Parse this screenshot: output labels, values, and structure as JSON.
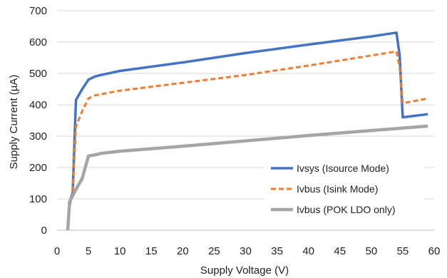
{
  "chart_data": {
    "type": "line",
    "title": "",
    "xlabel": "Supply Voltage (V)",
    "ylabel": "Supply Current (µA)",
    "xlim": [
      0,
      60
    ],
    "ylim": [
      0,
      700
    ],
    "xticks": [
      0,
      5,
      10,
      15,
      20,
      25,
      30,
      35,
      40,
      45,
      50,
      55,
      60
    ],
    "yticks": [
      0,
      100,
      200,
      300,
      400,
      500,
      600,
      700
    ],
    "grid": "horizontal",
    "legend_position": "bottom-right",
    "series": [
      {
        "name": "Ivsys (Isource Mode)",
        "color": "#4472C4",
        "style": "solid",
        "points": [
          [
            1.7,
            0
          ],
          [
            2,
            90
          ],
          [
            2.5,
            120
          ],
          [
            3,
            415
          ],
          [
            4,
            450
          ],
          [
            5,
            480
          ],
          [
            6,
            490
          ],
          [
            7,
            495
          ],
          [
            10,
            508
          ],
          [
            20,
            535
          ],
          [
            30,
            565
          ],
          [
            40,
            592
          ],
          [
            50,
            618
          ],
          [
            54,
            630
          ],
          [
            54.5,
            560
          ],
          [
            55,
            360
          ],
          [
            57,
            365
          ],
          [
            59,
            370
          ]
        ]
      },
      {
        "name": "Ivbus (Isink Mode)",
        "color": "#ED7D31",
        "style": "dashed",
        "points": [
          [
            1.7,
            0
          ],
          [
            2,
            75
          ],
          [
            2.5,
            120
          ],
          [
            3,
            330
          ],
          [
            4,
            380
          ],
          [
            5,
            420
          ],
          [
            6,
            430
          ],
          [
            10,
            445
          ],
          [
            20,
            470
          ],
          [
            30,
            495
          ],
          [
            40,
            525
          ],
          [
            50,
            557
          ],
          [
            54,
            570
          ],
          [
            54.5,
            520
          ],
          [
            55,
            405
          ],
          [
            59,
            420
          ]
        ]
      },
      {
        "name": "Ivbus (POK LDO only)",
        "color": "#A5A5A5",
        "style": "solid",
        "points": [
          [
            1.7,
            0
          ],
          [
            2,
            90
          ],
          [
            2.5,
            110
          ],
          [
            3,
            130
          ],
          [
            4,
            165
          ],
          [
            5,
            237
          ],
          [
            6,
            240
          ],
          [
            7,
            245
          ],
          [
            10,
            252
          ],
          [
            20,
            268
          ],
          [
            30,
            285
          ],
          [
            40,
            302
          ],
          [
            50,
            318
          ],
          [
            59,
            332
          ]
        ]
      }
    ]
  }
}
